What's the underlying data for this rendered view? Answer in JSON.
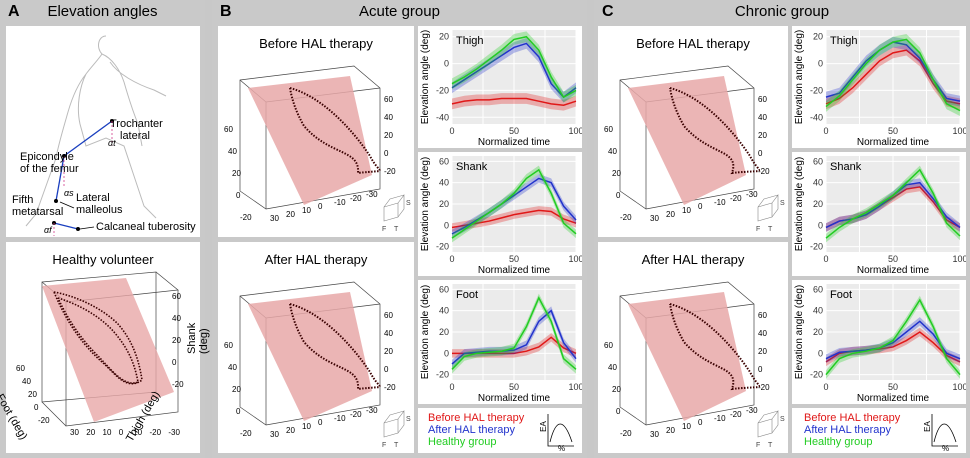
{
  "panelA": {
    "letter": "A",
    "title": "Elevation angles",
    "labels": {
      "trochanter": "Trochanter",
      "lateral": "lateral",
      "epicondyle": "Epicondyle",
      "of_femur": "of the femur",
      "fifth": "Fifth",
      "metatarsal": "metatarsal",
      "lateral2": "Lateral",
      "malleolus": "malleolus",
      "calcaneal": "Calcaneal tuberosity",
      "a_t": "αt",
      "a_s": "αs",
      "a_f": "αf"
    },
    "healthy_title": "Healthy volunteer",
    "healthy_axes": {
      "foot": "Foot (deg)",
      "thigh": "Thigh (deg)",
      "shank": "Shank (deg)",
      "foot_ticks": [
        "60",
        "40",
        "20",
        "0",
        "-20"
      ],
      "thigh_ticks": [
        "30",
        "20",
        "10",
        "0",
        "-10",
        "-20",
        "-30"
      ],
      "shank_ticks": [
        "60",
        "40",
        "20",
        "0",
        "-20"
      ]
    }
  },
  "panelB": {
    "letter": "B",
    "title": "Acute group",
    "before_title": "Before HAL therapy",
    "after_title": "After HAL therapy",
    "left_ticks": [
      "60",
      "40",
      "20",
      "0",
      "-20"
    ],
    "right_ticks": [
      "60",
      "40",
      "20",
      "0",
      "-20"
    ],
    "bottom_ticks": [
      "30",
      "20",
      "10",
      "0",
      "-10",
      "-20",
      "-30"
    ],
    "cube_labels": {
      "s": "S",
      "f": "F",
      "t": "T"
    }
  },
  "panelC": {
    "letter": "C",
    "title": "Chronic group",
    "before_title": "Before HAL therapy",
    "after_title": "After HAL therapy",
    "left_ticks": [
      "60",
      "40",
      "20",
      "0",
      "-20"
    ],
    "right_ticks": [
      "60",
      "40",
      "20",
      "0",
      "-20"
    ],
    "bottom_ticks": [
      "30",
      "20",
      "10",
      "0",
      "-10",
      "-20",
      "-30"
    ],
    "cube_labels": {
      "s": "S",
      "f": "F",
      "t": "T"
    }
  },
  "plot_text": {
    "ylabel": "Elevation angle (deg)",
    "xlabel": "Normalized time",
    "xticks": [
      "0",
      "50",
      "100"
    ]
  },
  "legend": {
    "before": "Before HAL therapy",
    "after": "After HAL therapy",
    "healthy": "Healthy group",
    "ea": "EA",
    "pct": "%"
  },
  "colors": {
    "before": "#e01818",
    "after": "#2233cc",
    "healthy": "#22cc22",
    "plane": "#e8a8a8"
  },
  "chart_data": [
    {
      "type": "line",
      "panel": "B",
      "title": "Thigh",
      "xlabel": "Normalized time",
      "ylabel": "Elevation angle (deg)",
      "xlim": [
        0,
        100
      ],
      "ylim": [
        -45,
        25
      ],
      "yticks": [
        20,
        0,
        -20,
        -40
      ],
      "x": [
        0,
        10,
        20,
        30,
        40,
        50,
        60,
        70,
        80,
        90,
        100
      ],
      "series": [
        {
          "name": "Before HAL therapy",
          "values": [
            -30,
            -28,
            -27,
            -27,
            -26,
            -26,
            -26,
            -28,
            -30,
            -31,
            -28
          ]
        },
        {
          "name": "After HAL therapy",
          "values": [
            -18,
            -12,
            -6,
            0,
            6,
            12,
            15,
            5,
            -15,
            -25,
            -18
          ]
        },
        {
          "name": "Healthy group",
          "values": [
            -15,
            -10,
            -4,
            3,
            10,
            18,
            20,
            10,
            -10,
            -25,
            -20
          ]
        }
      ]
    },
    {
      "type": "line",
      "panel": "B",
      "title": "Shank",
      "xlabel": "Normalized time",
      "ylabel": "Elevation angle (deg)",
      "xlim": [
        0,
        100
      ],
      "ylim": [
        -25,
        65
      ],
      "yticks": [
        60,
        40,
        20,
        0,
        -20
      ],
      "x": [
        0,
        10,
        20,
        30,
        40,
        50,
        60,
        70,
        80,
        90,
        100
      ],
      "series": [
        {
          "name": "Before HAL therapy",
          "values": [
            -2,
            0,
            2,
            4,
            7,
            10,
            12,
            14,
            13,
            6,
            2
          ]
        },
        {
          "name": "After HAL therapy",
          "values": [
            -8,
            -2,
            5,
            12,
            20,
            28,
            36,
            44,
            40,
            18,
            5
          ]
        },
        {
          "name": "Healthy group",
          "values": [
            -12,
            -4,
            4,
            12,
            20,
            30,
            44,
            52,
            30,
            2,
            -8
          ]
        }
      ]
    },
    {
      "type": "line",
      "panel": "B",
      "title": "Foot",
      "xlabel": "Normalized time",
      "ylabel": "Elevation angle (deg)",
      "xlim": [
        0,
        100
      ],
      "ylim": [
        -25,
        65
      ],
      "yticks": [
        60,
        40,
        20,
        0,
        -20
      ],
      "x": [
        0,
        10,
        20,
        30,
        40,
        50,
        60,
        70,
        80,
        90,
        100
      ],
      "series": [
        {
          "name": "Before HAL therapy",
          "values": [
            0,
            0,
            0,
            0,
            0,
            0,
            2,
            6,
            15,
            5,
            0
          ]
        },
        {
          "name": "After HAL therapy",
          "values": [
            -10,
            0,
            1,
            2,
            2,
            3,
            8,
            30,
            40,
            10,
            -5
          ]
        },
        {
          "name": "Healthy group",
          "values": [
            -15,
            -3,
            0,
            1,
            2,
            5,
            25,
            52,
            30,
            -5,
            -15
          ]
        }
      ]
    },
    {
      "type": "line",
      "panel": "C",
      "title": "Thigh",
      "xlabel": "Normalized time",
      "ylabel": "Elevation angle (deg)",
      "xlim": [
        0,
        100
      ],
      "ylim": [
        -45,
        25
      ],
      "yticks": [
        20,
        0,
        -20,
        -40
      ],
      "x": [
        0,
        10,
        20,
        30,
        40,
        50,
        60,
        70,
        80,
        90,
        100
      ],
      "series": [
        {
          "name": "Before HAL therapy",
          "values": [
            -30,
            -26,
            -18,
            -8,
            2,
            8,
            10,
            2,
            -15,
            -28,
            -30
          ]
        },
        {
          "name": "After HAL therapy",
          "values": [
            -25,
            -22,
            -10,
            2,
            10,
            16,
            14,
            4,
            -12,
            -26,
            -28
          ]
        },
        {
          "name": "Healthy group",
          "values": [
            -32,
            -24,
            -12,
            0,
            10,
            16,
            18,
            8,
            -12,
            -30,
            -35
          ]
        }
      ]
    },
    {
      "type": "line",
      "panel": "C",
      "title": "Shank",
      "xlabel": "Normalized time",
      "ylabel": "Elevation angle (deg)",
      "xlim": [
        0,
        100
      ],
      "ylim": [
        -25,
        65
      ],
      "yticks": [
        60,
        40,
        20,
        0,
        -20
      ],
      "x": [
        0,
        10,
        20,
        30,
        40,
        50,
        60,
        70,
        80,
        90,
        100
      ],
      "series": [
        {
          "name": "Before HAL therapy",
          "values": [
            -2,
            4,
            6,
            10,
            18,
            26,
            34,
            36,
            22,
            5,
            -2
          ]
        },
        {
          "name": "After HAL therapy",
          "values": [
            -2,
            4,
            6,
            10,
            18,
            28,
            38,
            40,
            25,
            8,
            -2
          ]
        },
        {
          "name": "Healthy group",
          "values": [
            -12,
            -2,
            6,
            12,
            20,
            28,
            40,
            52,
            30,
            2,
            -10
          ]
        }
      ]
    },
    {
      "type": "line",
      "panel": "C",
      "title": "Foot",
      "xlabel": "Normalized time",
      "ylabel": "Elevation angle (deg)",
      "xlim": [
        0,
        100
      ],
      "ylim": [
        -25,
        65
      ],
      "yticks": [
        60,
        40,
        20,
        0,
        -20
      ],
      "x": [
        0,
        10,
        20,
        30,
        40,
        50,
        60,
        70,
        80,
        90,
        100
      ],
      "series": [
        {
          "name": "Before HAL therapy",
          "values": [
            -8,
            0,
            2,
            3,
            4,
            6,
            12,
            20,
            10,
            -2,
            -8
          ]
        },
        {
          "name": "After HAL therapy",
          "values": [
            -5,
            1,
            2,
            3,
            5,
            10,
            20,
            30,
            18,
            0,
            -5
          ]
        },
        {
          "name": "Healthy group",
          "values": [
            -20,
            -5,
            0,
            2,
            5,
            12,
            30,
            50,
            25,
            -5,
            -20
          ]
        }
      ]
    }
  ]
}
